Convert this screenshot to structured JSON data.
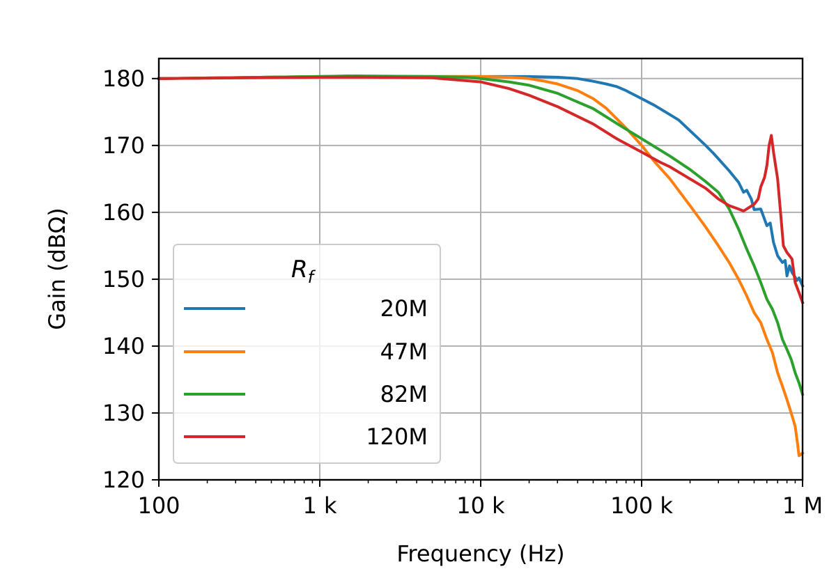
{
  "chart_data": {
    "type": "line",
    "title": "",
    "xlabel": "Frequency (Hz)",
    "ylabel": "Gain (dBΩ)",
    "x_scale": "log",
    "xlim": [
      100,
      1000000
    ],
    "ylim": [
      120,
      183
    ],
    "x_ticks": [
      {
        "value": 100,
        "label": "100"
      },
      {
        "value": 1000,
        "label": "1 k"
      },
      {
        "value": 10000,
        "label": "10 k"
      },
      {
        "value": 100000,
        "label": "100 k"
      },
      {
        "value": 1000000,
        "label": "1 M"
      }
    ],
    "y_ticks": [
      {
        "value": 120,
        "label": "120"
      },
      {
        "value": 130,
        "label": "130"
      },
      {
        "value": 140,
        "label": "140"
      },
      {
        "value": 150,
        "label": "150"
      },
      {
        "value": 160,
        "label": "160"
      },
      {
        "value": 170,
        "label": "170"
      },
      {
        "value": 180,
        "label": "180"
      }
    ],
    "grid": true,
    "legend": {
      "title": "R_f",
      "title_main": "R",
      "title_sub": "f",
      "placement": "lower-left"
    },
    "series": [
      {
        "name": "20M",
        "color": "#1f77b4",
        "points": [
          [
            100,
            180.0
          ],
          [
            1000,
            180.3
          ],
          [
            5000,
            180.3
          ],
          [
            10000,
            180.3
          ],
          [
            20000,
            180.3
          ],
          [
            30000,
            180.2
          ],
          [
            40000,
            180.0
          ],
          [
            50000,
            179.6
          ],
          [
            60000,
            179.2
          ],
          [
            70000,
            178.8
          ],
          [
            80000,
            178.2
          ],
          [
            100000,
            177.0
          ],
          [
            120000,
            176.0
          ],
          [
            150000,
            174.6
          ],
          [
            170000,
            173.8
          ],
          [
            200000,
            172.2
          ],
          [
            250000,
            170.0
          ],
          [
            280000,
            168.8
          ],
          [
            300000,
            168.0
          ],
          [
            350000,
            166.2
          ],
          [
            400000,
            164.5
          ],
          [
            430000,
            163.0
          ],
          [
            450000,
            163.3
          ],
          [
            480000,
            162.0
          ],
          [
            500000,
            160.4
          ],
          [
            550000,
            160.5
          ],
          [
            600000,
            158.0
          ],
          [
            630000,
            158.4
          ],
          [
            660000,
            155.5
          ],
          [
            700000,
            153.5
          ],
          [
            750000,
            152.5
          ],
          [
            780000,
            152.8
          ],
          [
            800000,
            150.5
          ],
          [
            830000,
            152.0
          ],
          [
            860000,
            151.0
          ],
          [
            900000,
            150.3
          ],
          [
            920000,
            149.8
          ],
          [
            950000,
            150.2
          ],
          [
            1000000,
            149.0
          ]
        ]
      },
      {
        "name": "47M",
        "color": "#ff7f0e",
        "points": [
          [
            100,
            180.0
          ],
          [
            1000,
            180.3
          ],
          [
            5000,
            180.3
          ],
          [
            10000,
            180.3
          ],
          [
            15000,
            180.2
          ],
          [
            20000,
            180.0
          ],
          [
            25000,
            179.6
          ],
          [
            30000,
            179.2
          ],
          [
            40000,
            178.2
          ],
          [
            50000,
            177.0
          ],
          [
            60000,
            175.6
          ],
          [
            70000,
            174.0
          ],
          [
            80000,
            172.6
          ],
          [
            100000,
            170.0
          ],
          [
            120000,
            167.6
          ],
          [
            150000,
            165.0
          ],
          [
            200000,
            161.0
          ],
          [
            250000,
            157.8
          ],
          [
            300000,
            155.0
          ],
          [
            350000,
            152.5
          ],
          [
            400000,
            150.0
          ],
          [
            450000,
            147.5
          ],
          [
            500000,
            145.0
          ],
          [
            550000,
            143.5
          ],
          [
            600000,
            141.0
          ],
          [
            650000,
            139.0
          ],
          [
            700000,
            136.0
          ],
          [
            750000,
            134.0
          ],
          [
            800000,
            132.0
          ],
          [
            850000,
            130.0
          ],
          [
            900000,
            128.0
          ],
          [
            930000,
            125.5
          ],
          [
            950000,
            123.6
          ],
          [
            1000000,
            124.0
          ]
        ]
      },
      {
        "name": "82M",
        "color": "#2ca02c",
        "points": [
          [
            100,
            180.0
          ],
          [
            1000,
            180.3
          ],
          [
            1500,
            180.4
          ],
          [
            5000,
            180.3
          ],
          [
            8000,
            180.2
          ],
          [
            10000,
            180.0
          ],
          [
            15000,
            179.5
          ],
          [
            20000,
            179.0
          ],
          [
            30000,
            177.8
          ],
          [
            40000,
            176.5
          ],
          [
            50000,
            175.5
          ],
          [
            70000,
            173.3
          ],
          [
            100000,
            171.0
          ],
          [
            150000,
            168.4
          ],
          [
            200000,
            166.4
          ],
          [
            250000,
            164.6
          ],
          [
            300000,
            163.0
          ],
          [
            350000,
            160.5
          ],
          [
            400000,
            157.5
          ],
          [
            450000,
            154.5
          ],
          [
            500000,
            152.0
          ],
          [
            550000,
            149.5
          ],
          [
            600000,
            147.0
          ],
          [
            650000,
            145.5
          ],
          [
            700000,
            143.5
          ],
          [
            750000,
            141.0
          ],
          [
            800000,
            139.5
          ],
          [
            850000,
            138.0
          ],
          [
            900000,
            136.0
          ],
          [
            950000,
            134.5
          ],
          [
            1000000,
            132.8
          ]
        ]
      },
      {
        "name": "120M",
        "color": "#d62728",
        "points": [
          [
            100,
            180.0
          ],
          [
            1000,
            180.2
          ],
          [
            2000,
            180.2
          ],
          [
            5000,
            180.1
          ],
          [
            8000,
            179.7
          ],
          [
            10000,
            179.5
          ],
          [
            15000,
            178.5
          ],
          [
            20000,
            177.5
          ],
          [
            30000,
            175.8
          ],
          [
            50000,
            173.2
          ],
          [
            70000,
            171.0
          ],
          [
            100000,
            169.0
          ],
          [
            130000,
            167.5
          ],
          [
            150000,
            166.8
          ],
          [
            200000,
            165.0
          ],
          [
            250000,
            163.6
          ],
          [
            300000,
            162.0
          ],
          [
            350000,
            161.0
          ],
          [
            400000,
            160.5
          ],
          [
            430000,
            160.2
          ],
          [
            470000,
            160.8
          ],
          [
            500000,
            161.2
          ],
          [
            530000,
            162.0
          ],
          [
            550000,
            163.8
          ],
          [
            580000,
            165.2
          ],
          [
            600000,
            167.0
          ],
          [
            620000,
            170.0
          ],
          [
            640000,
            171.5
          ],
          [
            660000,
            169.0
          ],
          [
            700000,
            165.0
          ],
          [
            730000,
            160.0
          ],
          [
            760000,
            155.0
          ],
          [
            800000,
            154.0
          ],
          [
            830000,
            153.5
          ],
          [
            860000,
            153.0
          ],
          [
            900000,
            149.5
          ],
          [
            950000,
            148.0
          ],
          [
            1000000,
            146.5
          ]
        ]
      }
    ]
  }
}
